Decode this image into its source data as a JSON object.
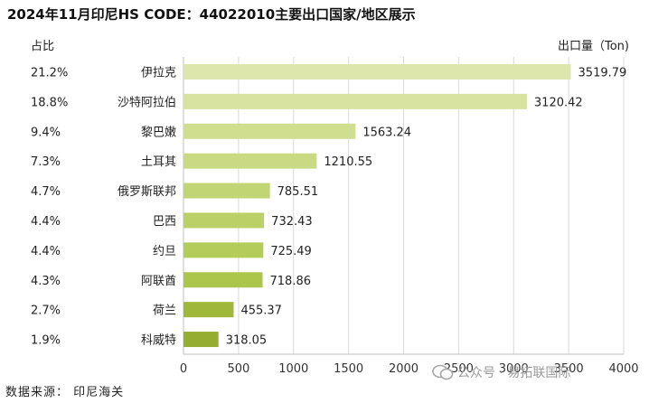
{
  "header": {
    "title": "2024年11月印尼HS CODE：44022010主要出口国家/地区展示",
    "share_header": "占比",
    "unit_label": "出口量（Ton)"
  },
  "footer": {
    "source": "数据来源： 印尼海关",
    "watermark": "公众号 · 易拓联国际"
  },
  "chart_data": {
    "type": "bar",
    "orientation": "horizontal",
    "categories": [
      "伊拉克",
      "沙特阿拉伯",
      "黎巴嫩",
      "土耳其",
      "俄罗斯联邦",
      "巴西",
      "约旦",
      "阿联酋",
      "荷兰",
      "科威特"
    ],
    "values": [
      3519.79,
      3120.42,
      1563.24,
      1210.55,
      785.51,
      732.43,
      725.49,
      718.86,
      455.37,
      318.05
    ],
    "value_labels": [
      "3519.79",
      "3120.42",
      "1563.24",
      "1210.55",
      "785.51",
      "732.43",
      "725.49",
      "718.86",
      "455.37",
      "318.05"
    ],
    "shares": [
      "21.2%",
      "18.8%",
      "9.4%",
      "7.3%",
      "4.7%",
      "4.4%",
      "4.4%",
      "4.3%",
      "2.7%",
      "1.9%"
    ],
    "colors": [
      "#dde6ad",
      "#d7e39f",
      "#d0de90",
      "#c9da82",
      "#c2d574",
      "#bbd066",
      "#b4cc59",
      "#acc64b",
      "#9fb83a",
      "#95ae30"
    ],
    "xlim": [
      0,
      4000
    ],
    "xticks": [
      0,
      500,
      1000,
      1500,
      2000,
      2500,
      3000,
      3500,
      4000
    ],
    "grid": true
  }
}
